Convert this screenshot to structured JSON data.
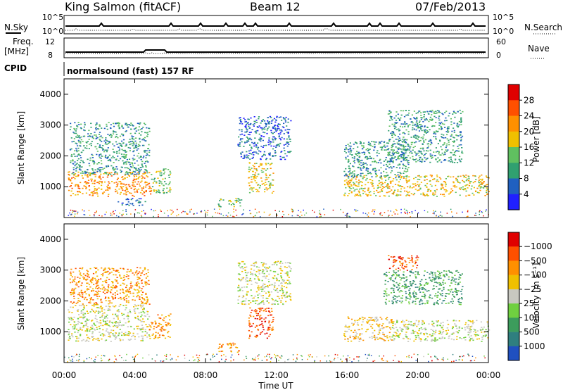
{
  "header": {
    "station": "King Salmon (fitACF)",
    "beam": "Beam 12",
    "date": "07/Feb/2013"
  },
  "top_panels": {
    "nsky_label": "N.Sky",
    "nsearch_label": "N.Search",
    "freq_label_1": "Freq.",
    "freq_label_2": "[MHz]",
    "nave_label": "Nave",
    "cpid_label": "CPID",
    "cpid_text": "normalsound (fast) 157 RF",
    "noise_ticks_left": [
      "10^5",
      "10^0"
    ],
    "noise_ticks_right": [
      "10^5",
      "10^0"
    ],
    "freq_ticks": [
      "12",
      "8"
    ],
    "nave_ticks": [
      "60",
      "0"
    ]
  },
  "axes": {
    "xlabel": "Time UT",
    "ylabel": "Slant Range [km]",
    "power_label": "Power [dB]",
    "velocity_label": "Velocity [m s⁻¹]"
  },
  "chart_data": [
    {
      "type": "heatmap",
      "name": "power",
      "x": [
        "00:00",
        "04:00",
        "08:00",
        "12:00",
        "16:00",
        "20:00",
        "00:00"
      ],
      "xlim_hours": [
        0,
        24
      ],
      "ylim": [
        0,
        4500
      ],
      "yticks": [
        "1000",
        "2000",
        "3000",
        "4000"
      ],
      "colorbar": {
        "labels": [
          "4",
          "8",
          "12",
          "16",
          "20",
          "24",
          "28"
        ],
        "colors": [
          "#2020ff",
          "#2060c0",
          "#30a070",
          "#60c060",
          "#f0c000",
          "#ff9000",
          "#ff5000",
          "#e00000"
        ]
      },
      "regions": [
        {
          "t0": 0.2,
          "t1": 4.9,
          "r0": 700,
          "r1": 1500,
          "level": 5
        },
        {
          "t0": 0.3,
          "t1": 4.8,
          "r0": 1400,
          "r1": 3100,
          "level": 2
        },
        {
          "t0": 4.9,
          "t1": 6.0,
          "r0": 800,
          "r1": 1600,
          "level": 3
        },
        {
          "t0": 3.0,
          "t1": 4.6,
          "r0": 400,
          "r1": 650,
          "level": 1
        },
        {
          "t0": 8.7,
          "t1": 10.0,
          "r0": 350,
          "r1": 650,
          "level": 3
        },
        {
          "t0": 9.8,
          "t1": 12.8,
          "r0": 1900,
          "r1": 3300,
          "level": 1
        },
        {
          "t0": 10.4,
          "t1": 11.8,
          "r0": 800,
          "r1": 1800,
          "level": 4
        },
        {
          "t0": 15.8,
          "t1": 24.0,
          "r0": 700,
          "r1": 1400,
          "level": 4
        },
        {
          "t0": 15.8,
          "t1": 19.5,
          "r0": 1300,
          "r1": 2500,
          "level": 2
        },
        {
          "t0": 18.3,
          "t1": 22.5,
          "r0": 1800,
          "r1": 3500,
          "level": 2
        }
      ]
    },
    {
      "type": "heatmap",
      "name": "velocity",
      "x": [
        "00:00",
        "04:00",
        "08:00",
        "12:00",
        "16:00",
        "20:00",
        "00:00"
      ],
      "xlim_hours": [
        0,
        24
      ],
      "ylim": [
        0,
        4500
      ],
      "yticks": [
        "1000",
        "2000",
        "3000",
        "4000"
      ],
      "colorbar": {
        "labels": [
          "1000",
          "500",
          "100",
          "25",
          "−25",
          "−100",
          "−500",
          "−1000"
        ],
        "colors": [
          "#2050c0",
          "#2f7f7f",
          "#3c9c5c",
          "#70d040",
          "#c8c8c0",
          "#f0c000",
          "#ff9000",
          "#ff5000",
          "#e00000"
        ]
      },
      "regions": [
        {
          "t0": 0.2,
          "t1": 4.8,
          "r0": 700,
          "r1": 1900,
          "level": 4
        },
        {
          "t0": 0.3,
          "t1": 4.8,
          "r0": 1900,
          "r1": 3100,
          "level": 6
        },
        {
          "t0": 4.8,
          "t1": 6.0,
          "r0": 800,
          "r1": 1600,
          "level": 6
        },
        {
          "t0": 8.7,
          "t1": 10.0,
          "r0": 350,
          "r1": 650,
          "level": 6
        },
        {
          "t0": 9.8,
          "t1": 12.8,
          "r0": 1900,
          "r1": 3300,
          "level": 4
        },
        {
          "t0": 10.4,
          "t1": 11.8,
          "r0": 800,
          "r1": 1800,
          "level": 7
        },
        {
          "t0": 15.8,
          "t1": 18.5,
          "r0": 700,
          "r1": 1500,
          "level": 5
        },
        {
          "t0": 18.5,
          "t1": 24.0,
          "r0": 700,
          "r1": 1400,
          "level": 4
        },
        {
          "t0": 18.0,
          "t1": 22.5,
          "r0": 1900,
          "r1": 3000,
          "level": 2
        },
        {
          "t0": 18.3,
          "t1": 20.0,
          "r0": 3000,
          "r1": 3500,
          "level": 7
        }
      ]
    }
  ]
}
